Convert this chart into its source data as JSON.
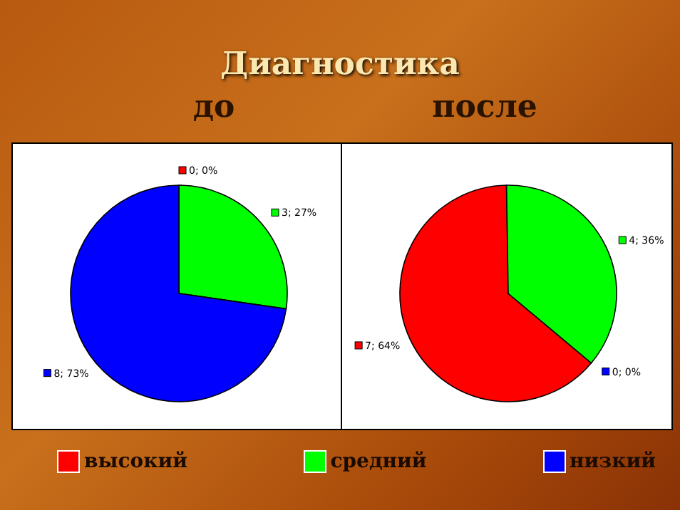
{
  "chart_data": [
    {
      "type": "pie",
      "title": "Диагностика",
      "subtitle": "до",
      "categories": [
        "высокий",
        "средний",
        "низкий"
      ],
      "values": [
        0,
        3,
        8
      ],
      "colors": [
        "#ff0000",
        "#00ff00",
        "#0000ff"
      ],
      "value_labels": [
        "0; 0%",
        "3; 27%",
        "8; 73%"
      ],
      "legend": "bottom"
    },
    {
      "type": "pie",
      "subtitle": "после",
      "categories": [
        null,
        null,
        null
      ],
      "values": [
        7,
        4,
        0
      ],
      "colors": [
        "#ff0000",
        "#00ff00",
        "#0000ff"
      ],
      "value_labels": [
        "7; 64%",
        "4; 36%",
        "0; 0%"
      ]
    }
  ]
}
